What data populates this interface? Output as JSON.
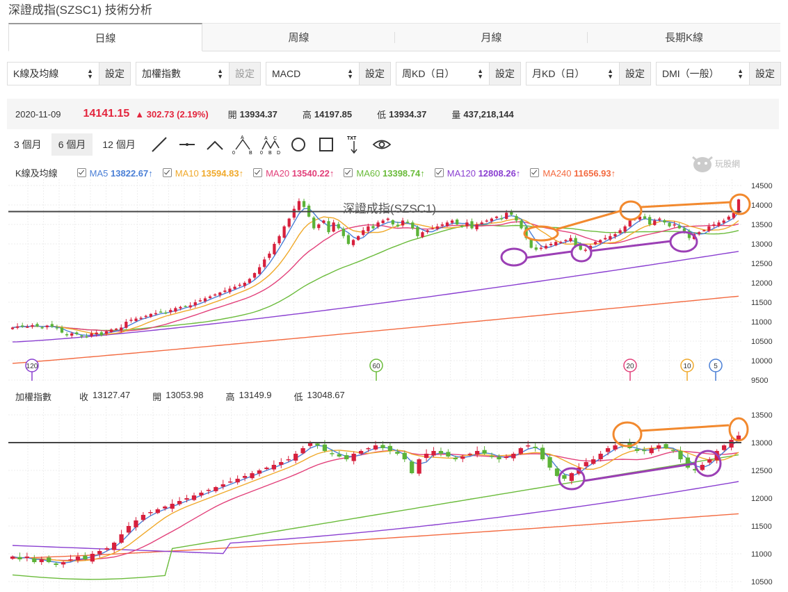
{
  "title": "深證成指(SZSC1) 技術分析",
  "tabs": [
    {
      "label": "日線"
    },
    {
      "label": "周線"
    },
    {
      "label": "月線"
    },
    {
      "label": "長期K線"
    }
  ],
  "selectors": [
    {
      "label": "K線及均線",
      "btn": "設定"
    },
    {
      "label": "加權指數",
      "btn": "設定"
    },
    {
      "label": "MACD",
      "btn": "設定"
    },
    {
      "label": "周KD（日）",
      "btn": "設定"
    },
    {
      "label": "月KD（日）",
      "btn": "設定"
    },
    {
      "label": "DMI（一般）",
      "btn": "設定"
    }
  ],
  "quote": {
    "date": "2020-11-09",
    "price": "14141.15",
    "change": "▲ 302.73 (2.19%)",
    "open_label": "開",
    "open": "13934.37",
    "high_label": "高",
    "high": "14197.85",
    "low_label": "低",
    "low": "13934.37",
    "vol_label": "量",
    "vol": "437,218,144"
  },
  "periods": [
    {
      "label": "3 個月"
    },
    {
      "label": "6 個月"
    },
    {
      "label": "12 個月"
    }
  ],
  "tool_icons": [
    "line-tool-icon",
    "hline-tool-icon",
    "polyline-tool-icon",
    "abc-pattern-icon",
    "abcd-pattern-icon",
    "circle-tool-icon",
    "rect-tool-icon",
    "text-tool-icon",
    "eye-icon"
  ],
  "tool_text": {
    "txt": "TXT",
    "a": "A",
    "b": "B",
    "c": "C",
    "d": "D",
    "o": "0"
  },
  "legend": {
    "name": "K線及均線",
    "items": [
      {
        "label": "MA5",
        "value": "13822.67↑",
        "color": "#4a7fd6"
      },
      {
        "label": "MA10",
        "value": "13594.83↑",
        "color": "#f0a92a"
      },
      {
        "label": "MA20",
        "value": "13540.22↑",
        "color": "#e2407a"
      },
      {
        "label": "MA60",
        "value": "13398.74↑",
        "color": "#6abb3a"
      },
      {
        "label": "MA120",
        "value": "12808.26↑",
        "color": "#8a3fd1"
      },
      {
        "label": "MA240",
        "value": "11656.93↑",
        "color": "#f36a40"
      }
    ]
  },
  "watermark": "玩股網",
  "main_chart": {
    "title": "深證成指(SZSC1)",
    "y_ticks": [
      "14500",
      "14000",
      "13500",
      "13000",
      "12500",
      "12000",
      "11500",
      "11000",
      "10500",
      "10000",
      "9500"
    ],
    "ma_markers": [
      {
        "text": "120",
        "color": "#8a3fd1"
      },
      {
        "text": "60",
        "color": "#6abb3a"
      },
      {
        "text": "20",
        "color": "#e2407a"
      },
      {
        "text": "10",
        "color": "#f0a92a"
      },
      {
        "text": "5",
        "color": "#4a7fd6"
      }
    ]
  },
  "sub_chart": {
    "name": "加權指數",
    "close_label": "收",
    "close": "13127.47",
    "open_label": "開",
    "open": "13053.98",
    "high_label": "高",
    "high": "13149.9",
    "low_label": "低",
    "low": "13048.67",
    "y_ticks": [
      "13500",
      "13000",
      "12500",
      "12000",
      "11500",
      "11000",
      "10500"
    ]
  },
  "chart_data": [
    {
      "type": "candlestick",
      "title": "深證成指(SZSC1)",
      "ylim": [
        9500,
        14500
      ],
      "resistance_level": 13830,
      "close": [
        10850,
        10880,
        10900,
        10870,
        10910,
        10880,
        10850,
        10900,
        10870,
        10830,
        10720,
        10650,
        10700,
        10680,
        10620,
        10600,
        10700,
        10720,
        10650,
        10750,
        10800,
        10820,
        10850,
        11000,
        11050,
        11080,
        11100,
        11150,
        11200,
        11220,
        11250,
        11230,
        11300,
        11350,
        11380,
        11400,
        11420,
        11500,
        11550,
        11600,
        11650,
        11700,
        11750,
        11800,
        11850,
        11900,
        11950,
        12000,
        12100,
        12250,
        12400,
        12600,
        12750,
        13000,
        13200,
        13450,
        13650,
        13900,
        14100,
        13950,
        13700,
        13400,
        13500,
        13600,
        13300,
        13550,
        13400,
        13200,
        13000,
        13100,
        13200,
        13350,
        13450,
        13400,
        13550,
        13600,
        13650,
        13500,
        13450,
        13600,
        13550,
        13400,
        13200,
        13300,
        13350,
        13400,
        13450,
        13500,
        13550,
        13600,
        13500,
        13450,
        13550,
        13400,
        13500,
        13550,
        13600,
        13650,
        13700,
        13650,
        13800,
        13750,
        13600,
        13400,
        13150,
        12900,
        12850,
        12900,
        12950,
        13000,
        13050,
        13050,
        13100,
        13150,
        12950,
        12850,
        12850,
        12950,
        13050,
        13100,
        13150,
        13200,
        13250,
        13350,
        13450,
        13600,
        13650,
        13700,
        13650,
        13500,
        13600,
        13650,
        13550,
        13450,
        13500,
        13400,
        13300,
        13150,
        13250,
        13300,
        13350,
        13450,
        13500,
        13550,
        13600,
        13700,
        13800,
        14141
      ]
    },
    {
      "type": "candlestick",
      "title": "",
      "ylim": [
        10500,
        13500
      ],
      "resistance_level": 13000,
      "close": [
        10950,
        10900,
        10950,
        10850,
        10900,
        10850,
        10800,
        10850,
        10900,
        10950,
        10900,
        11000,
        11050,
        11100,
        11200,
        11350,
        11500,
        11600,
        11700,
        11750,
        11800,
        11850,
        11900,
        11950,
        12000,
        12050,
        12100,
        12150,
        12200,
        12250,
        12300,
        12350,
        12400,
        12450,
        12500,
        12550,
        12600,
        12650,
        12700,
        12800,
        12900,
        13000,
        12950,
        12850,
        12800,
        12750,
        12700,
        12800,
        12850,
        12900,
        12950,
        12900,
        12850,
        12800,
        12700,
        12450,
        12700,
        12800,
        12850,
        12800,
        12750,
        12700,
        12750,
        12800,
        12850,
        12800,
        12750,
        12700,
        12750,
        12800,
        12900,
        12950,
        12900,
        12700,
        12550,
        12400,
        12350,
        12450,
        12550,
        12650,
        12700,
        12800,
        12900,
        12950,
        12950,
        12900,
        12850,
        12850,
        12900,
        12950,
        12900,
        12850,
        12700,
        12550,
        12500,
        12600,
        12700,
        12850,
        12950,
        13050,
        13127
      ]
    }
  ]
}
